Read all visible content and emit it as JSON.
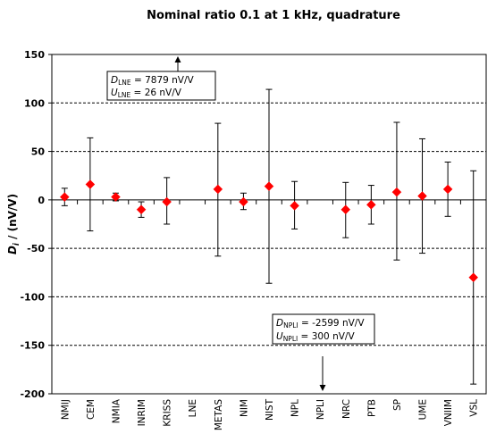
{
  "chart_data": {
    "type": "scatter",
    "title": "Nominal ratio 0.1 at 1 kHz, quadrature",
    "ylabel": "D_i / (nV/V)",
    "ylabel_parts": {
      "symbol": "D",
      "subscript": "i",
      "rest": " / (nV/V)"
    },
    "ylim": [
      -200,
      150
    ],
    "yticks": [
      150,
      100,
      50,
      0,
      -50,
      -100,
      -150,
      -200
    ],
    "gridlines": [
      100,
      50,
      -50,
      -100,
      -150
    ],
    "categories": [
      "NMIJ",
      "CEM",
      "NMIA",
      "INRIM",
      "KRISS",
      "LNE",
      "METAS",
      "NIM",
      "NIST",
      "NPL",
      "NPLI",
      "NRC",
      "PTB",
      "SP",
      "UME",
      "VNIIM",
      "VSL"
    ],
    "values": [
      3,
      16,
      3,
      -10,
      -2,
      null,
      11,
      -2,
      14,
      -6,
      null,
      -10,
      -5,
      8,
      4,
      11,
      -80
    ],
    "err_low": [
      -6,
      -32,
      -1,
      -18,
      -25,
      null,
      -58,
      -10,
      -86,
      -30,
      null,
      -39,
      -25,
      -62,
      -55,
      -17,
      -190
    ],
    "err_high": [
      12,
      64,
      7,
      -2,
      23,
      null,
      79,
      7,
      114,
      19,
      null,
      18,
      15,
      80,
      63,
      39,
      30
    ],
    "marker_color": "#ff0000",
    "annotations": [
      {
        "id": "LNE",
        "line1": {
          "sym": "D",
          "sub": "LNE",
          "text": " = 7879 nV/V"
        },
        "line2": {
          "sym": "U",
          "sub": "LNE",
          "text": " = 26 nV/V"
        },
        "arrow": "up"
      },
      {
        "id": "NPLI",
        "line1": {
          "sym": "D",
          "sub": "NPLI",
          "text": " = -2599  nV/V"
        },
        "line2": {
          "sym": "U",
          "sub": "NPLI",
          "text": " = 300 nV/V"
        },
        "arrow": "down"
      }
    ],
    "grid": true,
    "legend": "none"
  }
}
